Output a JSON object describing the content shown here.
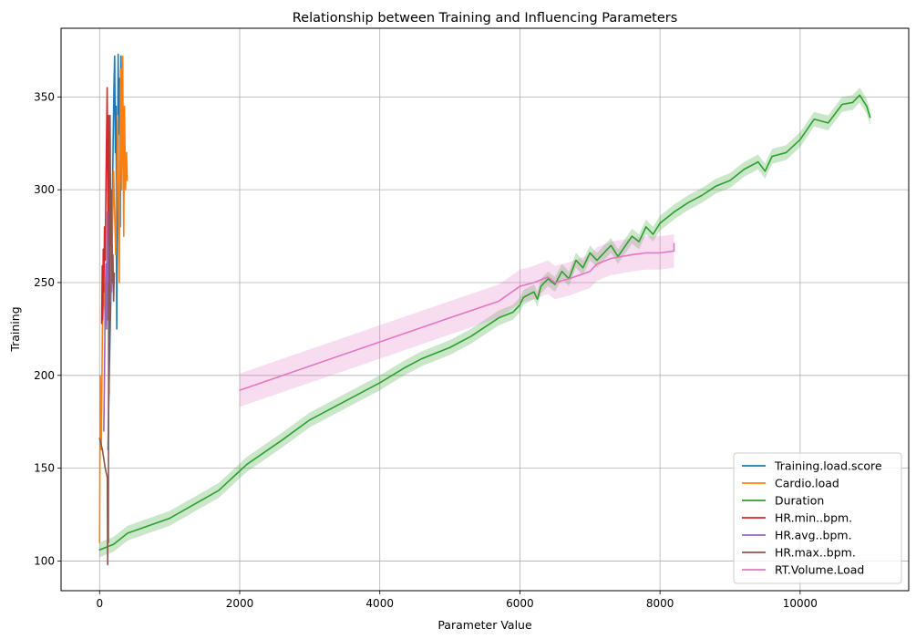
{
  "chart_data": {
    "type": "line",
    "title": "Relationship between Training and Influencing Parameters",
    "xlabel": "Parameter Value",
    "ylabel": "Training",
    "xlim": [
      -550,
      11550
    ],
    "ylim": [
      84,
      387
    ],
    "xticks": [
      0,
      2000,
      4000,
      6000,
      8000,
      10000
    ],
    "yticks": [
      100,
      150,
      200,
      250,
      300,
      350
    ],
    "grid": true,
    "legend_position": "lower right",
    "series": [
      {
        "name": "Training.load.score",
        "color": "#1f77b4",
        "points": [
          [
            120,
            160
          ],
          [
            140,
            205
          ],
          [
            160,
            240
          ],
          [
            175,
            275
          ],
          [
            185,
            300
          ],
          [
            195,
            330
          ],
          [
            205,
            355
          ],
          [
            215,
            372
          ],
          [
            225,
            320
          ],
          [
            235,
            345
          ],
          [
            245,
            225
          ],
          [
            255,
            300
          ],
          [
            265,
            373
          ],
          [
            275,
            330
          ],
          [
            285,
            360
          ],
          [
            295,
            280
          ],
          [
            305,
            372
          ],
          [
            312,
            300
          ]
        ]
      },
      {
        "name": "Cardio.load",
        "color": "#ff7f0e",
        "points": [
          [
            0,
            110
          ],
          [
            10,
            200
          ],
          [
            25,
            160
          ],
          [
            40,
            225
          ],
          [
            60,
            250
          ],
          [
            80,
            230
          ],
          [
            110,
            270
          ],
          [
            140,
            300
          ],
          [
            170,
            250
          ],
          [
            200,
            310
          ],
          [
            230,
            265
          ],
          [
            260,
            340
          ],
          [
            280,
            250
          ],
          [
            300,
            365
          ],
          [
            315,
            300
          ],
          [
            330,
            372
          ],
          [
            345,
            275
          ],
          [
            355,
            345
          ],
          [
            370,
            300
          ],
          [
            385,
            320
          ],
          [
            395,
            305
          ]
        ]
      },
      {
        "name": "Duration",
        "color": "#2ca02c",
        "band": 4,
        "points": [
          [
            0,
            106
          ],
          [
            200,
            109
          ],
          [
            400,
            115
          ],
          [
            1000,
            123
          ],
          [
            1700,
            138
          ],
          [
            2100,
            152
          ],
          [
            2600,
            165
          ],
          [
            3000,
            176
          ],
          [
            3500,
            186
          ],
          [
            4000,
            196
          ],
          [
            4350,
            204
          ],
          [
            4450,
            206
          ],
          [
            4600,
            209
          ],
          [
            5000,
            215
          ],
          [
            5300,
            221
          ],
          [
            5500,
            226
          ],
          [
            5700,
            231
          ],
          [
            5900,
            234
          ],
          [
            6000,
            238
          ],
          [
            6050,
            242
          ],
          [
            6200,
            245
          ],
          [
            6250,
            241
          ],
          [
            6300,
            248
          ],
          [
            6400,
            252
          ],
          [
            6500,
            249
          ],
          [
            6600,
            256
          ],
          [
            6700,
            252
          ],
          [
            6800,
            262
          ],
          [
            6900,
            258
          ],
          [
            7000,
            266
          ],
          [
            7100,
            262
          ],
          [
            7300,
            270
          ],
          [
            7400,
            264
          ],
          [
            7600,
            275
          ],
          [
            7700,
            272
          ],
          [
            7800,
            280
          ],
          [
            7900,
            276
          ],
          [
            8000,
            282
          ],
          [
            8200,
            288
          ],
          [
            8400,
            293
          ],
          [
            8600,
            297
          ],
          [
            8800,
            302
          ],
          [
            9000,
            305
          ],
          [
            9200,
            311
          ],
          [
            9400,
            315
          ],
          [
            9500,
            310
          ],
          [
            9600,
            318
          ],
          [
            9800,
            320
          ],
          [
            10000,
            327
          ],
          [
            10200,
            338
          ],
          [
            10400,
            336
          ],
          [
            10600,
            346
          ],
          [
            10750,
            347
          ],
          [
            10850,
            351
          ],
          [
            10950,
            345
          ],
          [
            11000,
            339
          ]
        ]
      },
      {
        "name": "HR.min..bpm.",
        "color": "#d62728",
        "points": [
          [
            30,
            228
          ],
          [
            38,
            259
          ],
          [
            45,
            230
          ],
          [
            52,
            268
          ],
          [
            60,
            245
          ],
          [
            70,
            280
          ],
          [
            80,
            262
          ],
          [
            90,
            300
          ],
          [
            100,
            330
          ],
          [
            108,
            355
          ],
          [
            115,
            310
          ],
          [
            122,
            265
          ],
          [
            128,
            340
          ],
          [
            135,
            250
          ],
          [
            142,
            310
          ],
          [
            150,
            240
          ],
          [
            160,
            285
          ],
          [
            170,
            250
          ],
          [
            180,
            270
          ]
        ]
      },
      {
        "name": "HR.avg..bpm.",
        "color": "#9467bd",
        "points": [
          [
            60,
            170
          ],
          [
            70,
            200
          ],
          [
            80,
            240
          ],
          [
            90,
            260
          ],
          [
            100,
            225
          ],
          [
            110,
            288
          ],
          [
            118,
            230
          ],
          [
            125,
            270
          ],
          [
            132,
            210
          ],
          [
            140,
            250
          ],
          [
            148,
            300
          ],
          [
            155,
            240
          ],
          [
            162,
            280
          ],
          [
            170,
            245
          ],
          [
            180,
            260
          ]
        ]
      },
      {
        "name": "HR.max..bpm.",
        "color": "#8c564b",
        "points": [
          [
            0,
            166
          ],
          [
            40,
            160
          ],
          [
            80,
            150
          ],
          [
            110,
            145
          ],
          [
            115,
            98
          ],
          [
            120,
            140
          ],
          [
            125,
            110
          ],
          [
            130,
            250
          ],
          [
            135,
            190
          ],
          [
            140,
            300
          ],
          [
            145,
            230
          ],
          [
            150,
            340
          ],
          [
            160,
            270
          ],
          [
            170,
            300
          ],
          [
            180,
            250
          ],
          [
            190,
            265
          ],
          [
            200,
            240
          ],
          [
            210,
            255
          ]
        ]
      },
      {
        "name": "RT.Volume.Load",
        "color": "#e377c2",
        "band": 9,
        "points": [
          [
            2000,
            192
          ],
          [
            3000,
            205
          ],
          [
            4000,
            218
          ],
          [
            5000,
            231
          ],
          [
            5700,
            240
          ],
          [
            6000,
            248
          ],
          [
            6200,
            250
          ],
          [
            6400,
            253
          ],
          [
            6500,
            250
          ],
          [
            6700,
            252
          ],
          [
            7000,
            256
          ],
          [
            7100,
            260
          ],
          [
            7300,
            263
          ],
          [
            7600,
            265
          ],
          [
            7800,
            266
          ],
          [
            8000,
            266
          ],
          [
            8200,
            267
          ],
          [
            8200,
            271
          ]
        ]
      }
    ]
  }
}
